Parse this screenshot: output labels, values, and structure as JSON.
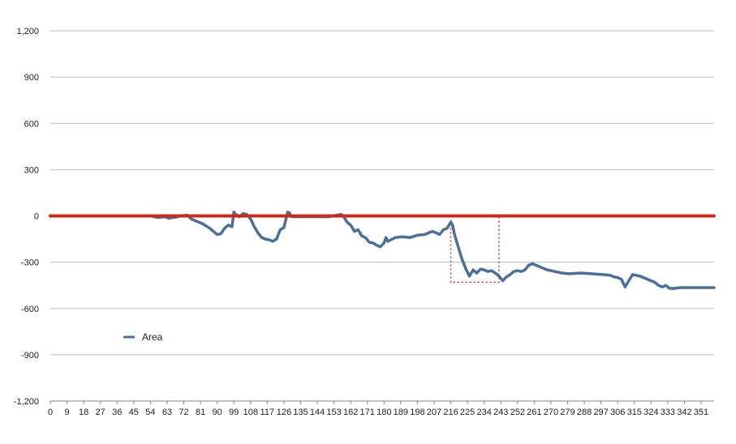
{
  "chart_data": {
    "type": "line",
    "title": "",
    "xlabel": "",
    "ylabel": "",
    "ylim": [
      -1200,
      1200
    ],
    "xlim": [
      0,
      358
    ],
    "y_ticks": [
      1200,
      900,
      600,
      300,
      0,
      -300,
      -600,
      -900,
      -1200
    ],
    "y_tick_labels": [
      "1,200",
      "900",
      "600",
      "300",
      "0",
      "-300",
      "-600",
      "-900",
      "-1,200"
    ],
    "x_ticks": [
      0,
      9,
      18,
      27,
      36,
      45,
      54,
      63,
      72,
      81,
      90,
      99,
      108,
      117,
      126,
      135,
      144,
      153,
      162,
      171,
      180,
      189,
      198,
      207,
      216,
      225,
      234,
      243,
      252,
      261,
      270,
      279,
      288,
      297,
      306,
      315,
      324,
      333,
      342,
      351
    ],
    "grid": "horizontal",
    "legend": {
      "position": "lower-left"
    },
    "series": [
      {
        "name": "Area",
        "color": "#4a6f9a",
        "x": [
          0,
          54,
          58,
          62,
          64,
          66,
          68,
          70,
          74,
          76,
          78,
          80,
          82,
          86,
          90,
          92,
          94,
          96,
          98,
          99,
          100,
          102,
          104,
          106,
          108,
          110,
          112,
          114,
          116,
          118,
          120,
          122,
          124,
          126,
          128,
          129,
          130,
          132,
          150,
          157,
          158,
          160,
          162,
          164,
          166,
          168,
          170,
          172,
          174,
          176,
          178,
          180,
          181,
          182,
          186,
          190,
          194,
          198,
          202,
          206,
          208,
          210,
          212,
          214,
          216,
          217,
          218,
          220,
          222,
          224,
          226,
          228,
          230,
          232,
          234,
          236,
          238,
          240,
          242,
          244,
          246,
          248,
          250,
          252,
          254,
          256,
          258,
          260,
          262,
          264,
          266,
          268,
          272,
          276,
          280,
          286,
          292,
          298,
          302,
          304,
          306,
          308,
          310,
          312,
          314,
          318,
          322,
          326,
          328,
          330,
          332,
          334,
          336,
          340,
          350,
          358
        ],
        "values": [
          0,
          0,
          -10,
          -5,
          -15,
          -10,
          -8,
          0,
          5,
          -20,
          -30,
          -40,
          -50,
          -80,
          -120,
          -115,
          -80,
          -60,
          -70,
          25,
          10,
          -5,
          15,
          10,
          -20,
          -70,
          -110,
          -140,
          -150,
          -155,
          -165,
          -150,
          -90,
          -75,
          25,
          20,
          -5,
          -5,
          -5,
          10,
          0,
          -40,
          -60,
          -100,
          -90,
          -130,
          -140,
          -170,
          -175,
          -190,
          -200,
          -175,
          -140,
          -165,
          -140,
          -135,
          -140,
          -125,
          -120,
          -100,
          -110,
          -120,
          -90,
          -80,
          -40,
          -60,
          -120,
          -200,
          -280,
          -340,
          -390,
          -350,
          -370,
          -345,
          -350,
          -360,
          -355,
          -370,
          -390,
          -420,
          -395,
          -380,
          -360,
          -355,
          -360,
          -350,
          -320,
          -310,
          -320,
          -330,
          -340,
          -350,
          -360,
          -370,
          -375,
          -370,
          -375,
          -380,
          -385,
          -395,
          -400,
          -410,
          -460,
          -420,
          -380,
          -390,
          -410,
          -430,
          -450,
          -460,
          -450,
          -470,
          -470,
          -465,
          -465,
          -465
        ]
      },
      {
        "name": "",
        "color": "#cc2a1b",
        "x": [
          0,
          358
        ],
        "values": [
          0,
          0
        ]
      }
    ],
    "annotations": [
      {
        "type": "dotted-rectangle",
        "color": "#cc2a1b",
        "x": [
          216,
          242
        ],
        "y": [
          -430,
          0
        ]
      }
    ]
  }
}
